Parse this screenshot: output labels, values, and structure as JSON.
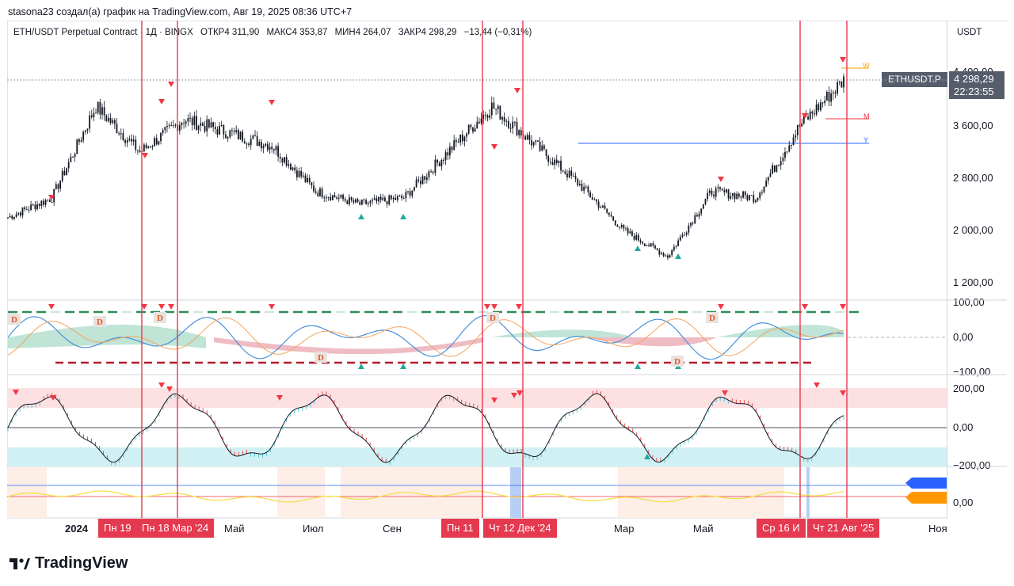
{
  "header": {
    "author_line": "stasona23 создал(а) график на TradingView.com, Авг 19, 2025 08:36 UTC+7"
  },
  "legend": {
    "symbol": "ETH/USDT Perpetual Contract · 1Д · BINGX",
    "open": "ОТКР4 311,90",
    "high": "МАКС4 353,87",
    "low": "МИН4 264,07",
    "close": "ЗАКР4 298,29",
    "change": "−13,44 (−0,31%)"
  },
  "price_axis": {
    "currency": "USDT",
    "ticks": [
      "4 400,00",
      "3 600,00",
      "2 800,00",
      "2 000,00",
      "1 200,00"
    ],
    "symbol_tag": "ETHUSDT.P",
    "last_price": "4 298,29",
    "countdown": "22:23:55"
  },
  "osc_axis": {
    "ticks": [
      "100,00",
      "0,00",
      "−100,00"
    ]
  },
  "cci_axis": {
    "ticks": [
      "200,00",
      "0,00",
      "−200,00"
    ]
  },
  "bottom_axis": {
    "ticks": [
      "0,00"
    ]
  },
  "level_labels": {
    "w": "W",
    "m": "M",
    "y": "Y"
  },
  "time_axis": {
    "labels": [
      {
        "t": "2024",
        "bold": true
      },
      {
        "t": "Май"
      },
      {
        "t": "Июл"
      },
      {
        "t": "Сен"
      },
      {
        "t": "Мар"
      },
      {
        "t": "Май"
      },
      {
        "t": "Ноя"
      }
    ],
    "highlights": [
      "Пн 19",
      "Пн 18 Мар '24",
      "Пн 11",
      "Чт 12 Дек '24",
      "Ср 16 И",
      "Чт 21 Авг '25"
    ]
  },
  "markers": {
    "divergence": "D"
  },
  "brand": {
    "name": "TradingView"
  },
  "colors": {
    "vline": "#e53950",
    "up": "#26a69a",
    "down": "#f23645",
    "candle": "#131722",
    "level_w": "#f7a600",
    "level_m": "#f23645",
    "level_y": "#2962ff",
    "cci_line": "#131722",
    "cci_up": "#5ec8d6",
    "cci_down": "#e84b4b",
    "zone_top": "#fde0e2",
    "zone_bot": "#d0f0f4",
    "yellow": "#f5e04a"
  },
  "chart_data": {
    "type": "line",
    "title": "ETH/USDT Perpetual Contract · 1Д · BINGX",
    "ylabel": "USDT",
    "x": [
      "2024-01",
      "2024-02",
      "2024-03",
      "2024-04",
      "2024-05",
      "2024-06",
      "2024-07",
      "2024-08",
      "2024-09",
      "2024-10",
      "2024-11",
      "2024-12",
      "2025-01",
      "2025-02",
      "2025-03",
      "2025-04",
      "2025-05",
      "2025-06",
      "2025-07",
      "2025-08"
    ],
    "series": [
      {
        "values": [
          2200,
          2500,
          3900,
          3200,
          3700,
          3500,
          3300,
          2600,
          2400,
          2500,
          3200,
          3900,
          3300,
          2700,
          2000,
          1600,
          2600,
          2500,
          3600,
          4298
        ]
      }
    ],
    "ylim": [
      1000,
      4800
    ],
    "yticks": [
      1200,
      2000,
      2800,
      3600,
      4400
    ]
  }
}
